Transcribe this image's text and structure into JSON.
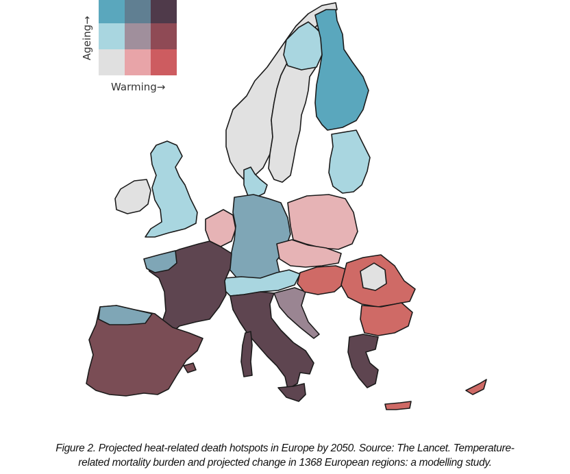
{
  "legend": {
    "y_axis_label": "Ageing→",
    "x_axis_label": "Warming→",
    "grid_colors": [
      [
        "#5aa7bd",
        "#607f92",
        "#4f3a4a"
      ],
      [
        "#a9d6e0",
        "#a08f9c",
        "#8f4a55"
      ],
      [
        "#e0e0e0",
        "#e8a4a8",
        "#cd5c60"
      ]
    ]
  },
  "map": {
    "colors": {
      "grey": "#e1e1e1",
      "light_blue": "#a9d6e0",
      "blue": "#5aa7bd",
      "mixed_blue": "#7fa6b6",
      "pink": "#e6b3b5",
      "red": "#cf6a66",
      "dark": "#5e4550",
      "dark_red": "#7a4d55",
      "mauve": "#9a8592",
      "border": "#1a1a1a",
      "sea": "#ffffff"
    }
  },
  "caption": {
    "line1": "Figure 2. Projected heat-related death hotspots in Europe by 2050. Source: The Lancet. Temperature-",
    "line2": "related mortality burden and projected change in 1368 European regions: a modelling study."
  }
}
